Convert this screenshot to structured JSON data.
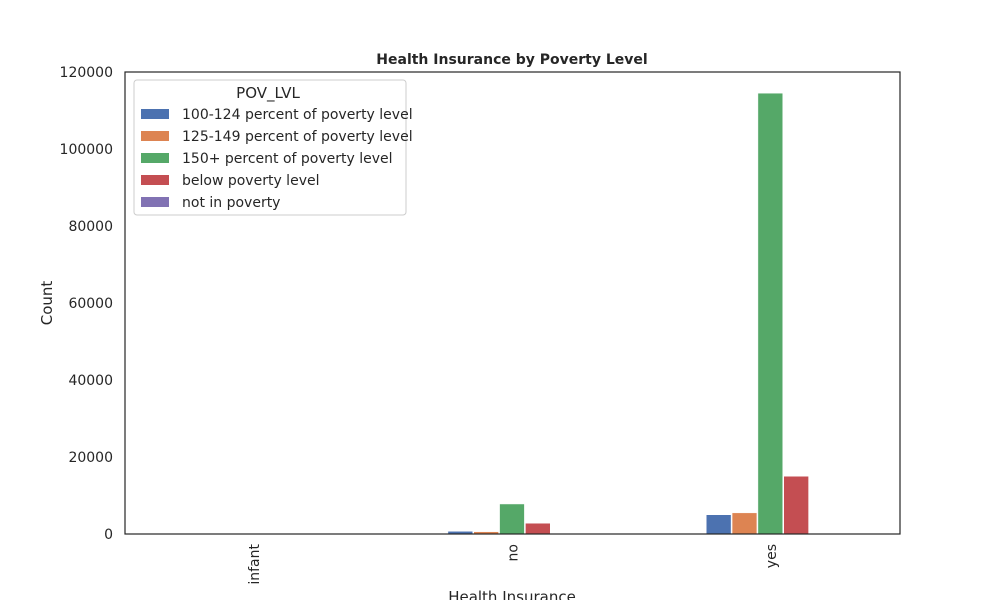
{
  "chart_data": {
    "type": "bar",
    "title": "Health Insurance by Poverty Level",
    "xlabel": "Health Insurance",
    "ylabel": "Count",
    "categories": [
      "infant",
      "no",
      "yes"
    ],
    "ylim": [
      0,
      120000
    ],
    "yticks": [
      0,
      20000,
      40000,
      60000,
      80000,
      100000,
      120000
    ],
    "grid": false,
    "legend": {
      "title": "POV_LVL",
      "placement": "top-left"
    },
    "series": [
      {
        "name": "100-124 percent of poverty level",
        "color": "#4c72b0",
        "values": [
          0,
          700,
          5000
        ]
      },
      {
        "name": "125-149 percent of poverty level",
        "color": "#dd8452",
        "values": [
          0,
          600,
          5500
        ]
      },
      {
        "name": "150+ percent of poverty level",
        "color": "#55a868",
        "values": [
          0,
          7800,
          114500
        ]
      },
      {
        "name": "below poverty level",
        "color": "#c44e52",
        "values": [
          0,
          2800,
          15000
        ]
      },
      {
        "name": "not in poverty",
        "color": "#8172b3",
        "values": [
          0,
          0,
          0
        ]
      }
    ]
  }
}
